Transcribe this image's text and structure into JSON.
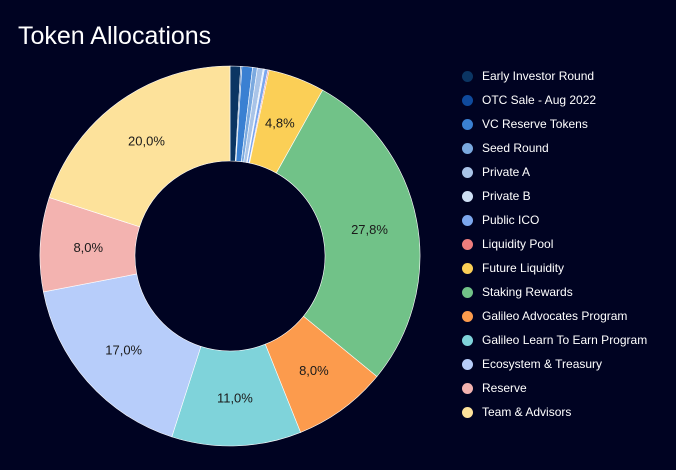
{
  "chart_data": {
    "type": "pie",
    "title": "Token Allocations",
    "donut": true,
    "legend_position": "right",
    "series": [
      {
        "name": "Early Investor Round",
        "value": 0.9,
        "label": "",
        "color": "#0b3563"
      },
      {
        "name": "OTC Sale - Aug 2022",
        "value": 0.1,
        "label": "",
        "color": "#0f4a9c"
      },
      {
        "name": "VC Reserve Tokens",
        "value": 0.9,
        "label": "",
        "color": "#3a80d2"
      },
      {
        "name": "Seed Round",
        "value": 0.4,
        "label": "",
        "color": "#7aa9df"
      },
      {
        "name": "Private A",
        "value": 0.5,
        "label": "",
        "color": "#a9c4e8"
      },
      {
        "name": "Private B",
        "value": 0.1,
        "label": "",
        "color": "#cfe0f5"
      },
      {
        "name": "Public ICO",
        "value": 0.3,
        "label": "",
        "color": "#7ca7ee"
      },
      {
        "name": "Liquidity Pool",
        "value": 0.1,
        "label": "",
        "color": "#ee7d7d"
      },
      {
        "name": "Future Liquidity",
        "value": 4.8,
        "label": "4,8%",
        "color": "#fbcf56"
      },
      {
        "name": "Staking Rewards",
        "value": 27.8,
        "label": "27,8%",
        "color": "#71c288"
      },
      {
        "name": "Galileo Advocates Program",
        "value": 8.0,
        "label": "8,0%",
        "color": "#fc9b4d"
      },
      {
        "name": "Galileo Learn To Earn Program",
        "value": 11.0,
        "label": "11,0%",
        "color": "#7fd3da"
      },
      {
        "name": "Ecosystem & Treasury",
        "value": 17.0,
        "label": "17,0%",
        "color": "#b7cdfa"
      },
      {
        "name": "Reserve",
        "value": 8.0,
        "label": "8,0%",
        "color": "#f3b3b0"
      },
      {
        "name": "Team & Advisors",
        "value": 20.0,
        "label": "20,0%",
        "color": "#fde29b"
      }
    ]
  }
}
